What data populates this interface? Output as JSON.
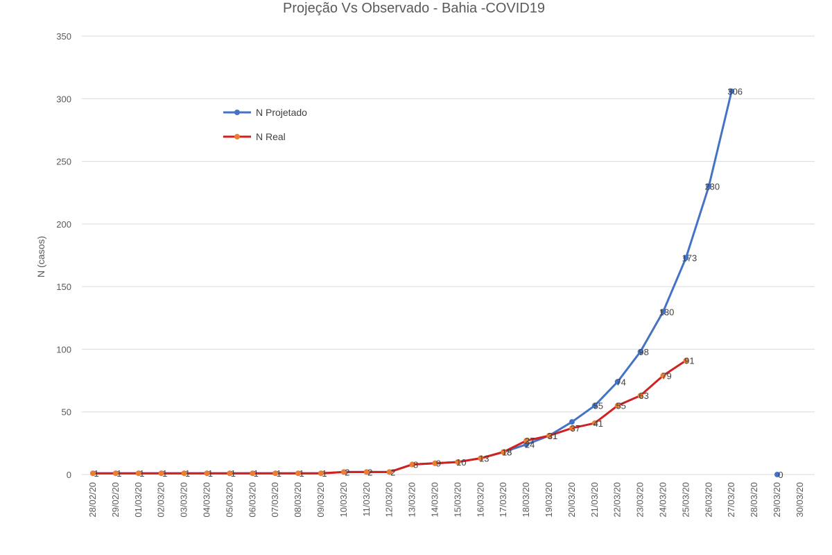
{
  "chart_data": {
    "type": "line",
    "title": "Projeção Vs Observado - Bahia -COVID19",
    "xlabel": "",
    "ylabel": "N (casos)",
    "ylim": [
      0,
      350
    ],
    "yticks": [
      0,
      50,
      100,
      150,
      200,
      250,
      300,
      350
    ],
    "grid": true,
    "legend_position": "top-left",
    "categories": [
      "28/02/20",
      "29/02/20",
      "01/03/20",
      "02/03/20",
      "03/03/20",
      "04/03/20",
      "05/03/20",
      "06/03/20",
      "07/03/20",
      "08/03/20",
      "09/03/20",
      "10/03/20",
      "11/03/20",
      "12/03/20",
      "13/03/20",
      "14/03/20",
      "15/03/20",
      "16/03/20",
      "17/03/20",
      "18/03/20",
      "19/03/20",
      "20/03/20",
      "21/03/20",
      "22/03/20",
      "23/03/20",
      "24/03/20",
      "25/03/20",
      "26/03/20",
      "27/03/20",
      "28/03/20",
      "29/03/20",
      "30/03/20"
    ],
    "series": [
      {
        "name": "N Projetado",
        "color": "#4472c4",
        "values": [
          1,
          1,
          1,
          1,
          1,
          1,
          1,
          1,
          1,
          1,
          1,
          2,
          2,
          2,
          8,
          9,
          10,
          13,
          18,
          24,
          31,
          42,
          55,
          74,
          98,
          130,
          173,
          230,
          306,
          null,
          0,
          null
        ],
        "labels": [
          "",
          "",
          "",
          "",
          "",
          "",
          "",
          "",
          "",
          "",
          "",
          "",
          "",
          "",
          "",
          "",
          "",
          "",
          "18",
          "24",
          "31",
          "",
          "55",
          "74",
          "98",
          "130",
          "173",
          "230",
          "306",
          "",
          "0",
          ""
        ]
      },
      {
        "name": "N Real",
        "color": "#d02020",
        "marker_color": "#ed7d31",
        "values": [
          1,
          1,
          1,
          1,
          1,
          1,
          1,
          1,
          1,
          1,
          1,
          2,
          2,
          2,
          8,
          9,
          10,
          13,
          18,
          27,
          31,
          37,
          41,
          55,
          63,
          79,
          91,
          null,
          null,
          null,
          null,
          null
        ],
        "labels": [
          "1",
          "1",
          "1",
          "1",
          "1",
          "1",
          "1",
          "1",
          "1",
          "1",
          "1",
          "2",
          "2",
          "2",
          "8",
          "9",
          "10",
          "13",
          "18",
          "27",
          "31",
          "37",
          "41",
          "55",
          "63",
          "79",
          "91",
          "",
          "",
          "",
          "",
          ""
        ]
      }
    ]
  }
}
